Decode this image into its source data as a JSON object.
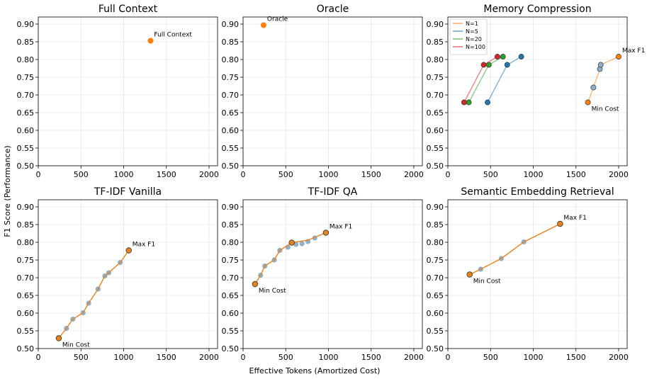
{
  "figure": {
    "ylabel": "F1 Score (Performance)",
    "xlabel": "Effective Tokens (Amortized Cost)"
  },
  "colors": {
    "orange": "#ff7f0e",
    "blue": "#1f77b4",
    "green": "#2ca02c",
    "red": "#d62728",
    "fill_blue": "#8fafca",
    "frontier": "#e8821e"
  },
  "chart_data": [
    {
      "type": "scatter",
      "title": "Full Context",
      "xlim": [
        0,
        2100
      ],
      "ylim": [
        0.5,
        0.92
      ],
      "xticks": [
        "0",
        "500",
        "1000",
        "1500",
        "2000"
      ],
      "yticks": [
        "0.50",
        "0.55",
        "0.60",
        "0.65",
        "0.70",
        "0.75",
        "0.80",
        "0.85",
        "0.90"
      ],
      "grid": true,
      "series": [
        {
          "kind": "single",
          "color": "orange",
          "points": [
            [
              1315,
              0.853
            ]
          ]
        }
      ],
      "annotations": [
        {
          "text": "Full Context",
          "x": 1315,
          "y": 0.853,
          "pos": "upper-right"
        }
      ]
    },
    {
      "type": "scatter",
      "title": "Oracle",
      "xlim": [
        0,
        2100
      ],
      "ylim": [
        0.5,
        0.92
      ],
      "xticks": [
        "0",
        "500",
        "1000",
        "1500",
        "2000"
      ],
      "yticks": [
        "0.50",
        "0.55",
        "0.60",
        "0.65",
        "0.70",
        "0.75",
        "0.80",
        "0.85",
        "0.90"
      ],
      "grid": true,
      "series": [
        {
          "kind": "single",
          "color": "orange",
          "points": [
            [
              240,
              0.897
            ]
          ]
        }
      ],
      "annotations": [
        {
          "text": "Oracle",
          "x": 240,
          "y": 0.897,
          "pos": "upper-right"
        }
      ]
    },
    {
      "type": "line",
      "title": "Memory Compression",
      "xlim": [
        0,
        2100
      ],
      "ylim": [
        0.5,
        0.92
      ],
      "xticks": [
        "0",
        "500",
        "1000",
        "1500",
        "2000"
      ],
      "yticks": [
        "0.50",
        "0.55",
        "0.60",
        "0.65",
        "0.70",
        "0.75",
        "0.80",
        "0.85",
        "0.90"
      ],
      "grid": true,
      "legend": "upper-left",
      "series": [
        {
          "kind": "line",
          "name": "N=1",
          "color": "orange",
          "points": [
            [
              1640,
              0.679
            ],
            [
              1705,
              0.721
            ],
            [
              1780,
              0.773
            ],
            [
              1790,
              0.785
            ],
            [
              2000,
              0.808
            ]
          ]
        },
        {
          "kind": "line",
          "name": "N=5",
          "color": "blue",
          "points": [
            [
              465,
              0.679
            ],
            [
              695,
              0.785
            ],
            [
              860,
              0.808
            ]
          ]
        },
        {
          "kind": "line",
          "name": "N=20",
          "color": "green",
          "points": [
            [
              245,
              0.679
            ],
            [
              480,
              0.785
            ],
            [
              645,
              0.808
            ]
          ]
        },
        {
          "kind": "line",
          "name": "N=100",
          "color": "red",
          "points": [
            [
              190,
              0.679
            ],
            [
              420,
              0.785
            ],
            [
              580,
              0.808
            ]
          ]
        }
      ],
      "annotations": [
        {
          "text": "Max F1",
          "x": 2000,
          "y": 0.808,
          "pos": "upper-right"
        },
        {
          "text": "Min Cost",
          "x": 1640,
          "y": 0.679,
          "pos": "lower-right"
        }
      ]
    },
    {
      "type": "scatter",
      "title": "TF-IDF Vanilla",
      "xlim": [
        0,
        2100
      ],
      "ylim": [
        0.5,
        0.92
      ],
      "xticks": [
        "0",
        "500",
        "1000",
        "1500",
        "2000"
      ],
      "yticks": [
        "0.50",
        "0.55",
        "0.60",
        "0.65",
        "0.70",
        "0.75",
        "0.80",
        "0.85",
        "0.90"
      ],
      "grid": true,
      "series": [
        {
          "kind": "cloud",
          "color": "fill_blue",
          "points": [
            [
              330,
              0.557
            ],
            [
              405,
              0.583
            ],
            [
              525,
              0.601
            ],
            [
              590,
              0.628
            ],
            [
              700,
              0.668
            ],
            [
              780,
              0.705
            ],
            [
              825,
              0.714
            ],
            [
              960,
              0.743
            ]
          ]
        },
        {
          "kind": "frontier",
          "color": "frontier",
          "points": [
            [
              240,
              0.529
            ],
            [
              330,
              0.557
            ],
            [
              405,
              0.583
            ],
            [
              525,
              0.601
            ],
            [
              590,
              0.628
            ],
            [
              700,
              0.668
            ],
            [
              780,
              0.705
            ],
            [
              825,
              0.714
            ],
            [
              960,
              0.743
            ],
            [
              1060,
              0.777
            ]
          ],
          "ends": [
            [
              240,
              0.529
            ],
            [
              1060,
              0.777
            ]
          ]
        }
      ],
      "annotations": [
        {
          "text": "Max F1",
          "x": 1060,
          "y": 0.777,
          "pos": "upper-right"
        },
        {
          "text": "Min Cost",
          "x": 240,
          "y": 0.529,
          "pos": "lower-right"
        }
      ]
    },
    {
      "type": "scatter",
      "title": "TF-IDF QA",
      "xlim": [
        0,
        2100
      ],
      "ylim": [
        0.5,
        0.92
      ],
      "xticks": [
        "0",
        "500",
        "1000",
        "1500",
        "2000"
      ],
      "yticks": [
        "0.50",
        "0.55",
        "0.60",
        "0.65",
        "0.70",
        "0.75",
        "0.80",
        "0.85",
        "0.90"
      ],
      "grid": true,
      "series": [
        {
          "kind": "cloud",
          "color": "fill_blue",
          "points": [
            [
              205,
              0.707
            ],
            [
              255,
              0.733
            ],
            [
              365,
              0.75
            ],
            [
              430,
              0.777
            ],
            [
              525,
              0.786
            ],
            [
              620,
              0.794
            ],
            [
              690,
              0.796
            ],
            [
              760,
              0.802
            ],
            [
              840,
              0.812
            ]
          ]
        },
        {
          "kind": "frontier",
          "color": "frontier",
          "points": [
            [
              140,
              0.682
            ],
            [
              205,
              0.707
            ],
            [
              255,
              0.733
            ],
            [
              365,
              0.75
            ],
            [
              430,
              0.777
            ],
            [
              570,
              0.799
            ],
            [
              760,
              0.806
            ],
            [
              970,
              0.827
            ]
          ],
          "ends": [
            [
              140,
              0.682
            ],
            [
              570,
              0.799
            ],
            [
              970,
              0.827
            ]
          ]
        }
      ],
      "annotations": [
        {
          "text": "Max F1",
          "x": 970,
          "y": 0.827,
          "pos": "upper-right"
        },
        {
          "text": "Min Cost",
          "x": 140,
          "y": 0.682,
          "pos": "lower-right"
        }
      ]
    },
    {
      "type": "scatter",
      "title": "Semantic Embedding Retrieval",
      "xlim": [
        0,
        2100
      ],
      "ylim": [
        0.5,
        0.92
      ],
      "xticks": [
        "0",
        "500",
        "1000",
        "1500",
        "2000"
      ],
      "yticks": [
        "0.50",
        "0.55",
        "0.60",
        "0.65",
        "0.70",
        "0.75",
        "0.80",
        "0.85",
        "0.90"
      ],
      "grid": true,
      "series": [
        {
          "kind": "cloud",
          "color": "fill_blue",
          "points": [
            [
              385,
              0.724
            ],
            [
              625,
              0.754
            ],
            [
              890,
              0.801
            ]
          ]
        },
        {
          "kind": "frontier",
          "color": "frontier",
          "points": [
            [
              255,
              0.709
            ],
            [
              385,
              0.724
            ],
            [
              625,
              0.754
            ],
            [
              890,
              0.801
            ],
            [
              1315,
              0.852
            ]
          ],
          "ends": [
            [
              255,
              0.709
            ],
            [
              1315,
              0.852
            ]
          ]
        }
      ],
      "annotations": [
        {
          "text": "Max F1",
          "x": 1315,
          "y": 0.852,
          "pos": "upper-right"
        },
        {
          "text": "Min Cost",
          "x": 255,
          "y": 0.709,
          "pos": "lower-right"
        }
      ]
    }
  ]
}
